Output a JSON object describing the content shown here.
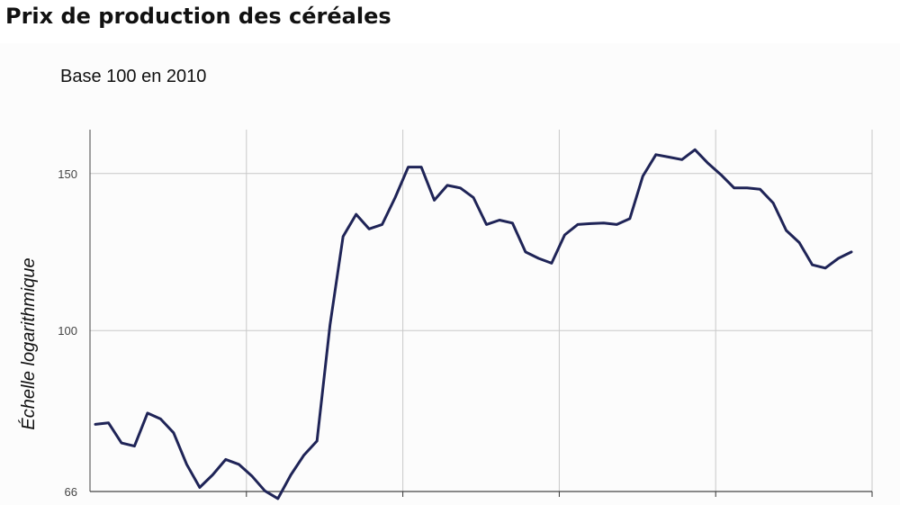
{
  "title": "Prix de production des céréales",
  "chart_data": {
    "type": "line",
    "subtitle": "Base 100 en 2010",
    "ylabel": "Échelle logarithmique",
    "yscale": "log",
    "ylim": [
      66,
      168
    ],
    "yticks": [
      66,
      100,
      150
    ],
    "ytick_labels": [
      "66",
      "100",
      "150"
    ],
    "x_vertical_gridlines": 4,
    "grid": true,
    "line_color": "#1f2457",
    "series": [
      {
        "values": [
          78.5,
          78.8,
          74.8,
          74.2,
          80.8,
          79.6,
          76.8,
          70.8,
          66.7,
          68.9,
          71.7,
          70.8,
          68.7,
          66.1,
          64.8,
          68.9,
          72.5,
          75.2,
          101.5,
          127.5,
          135,
          130,
          131.5,
          141,
          152.5,
          152.5,
          140,
          145.5,
          144.5,
          141,
          131.5,
          133,
          132,
          122.5,
          120.5,
          119,
          128,
          131.5,
          131.8,
          132,
          131.5,
          133.5,
          149,
          157.5,
          156.5,
          155.5,
          159.5,
          154,
          149.5,
          144.5,
          144.5,
          144,
          139,
          129.5,
          125.5,
          118.5,
          117.5,
          120.5,
          122.5
        ]
      }
    ]
  }
}
